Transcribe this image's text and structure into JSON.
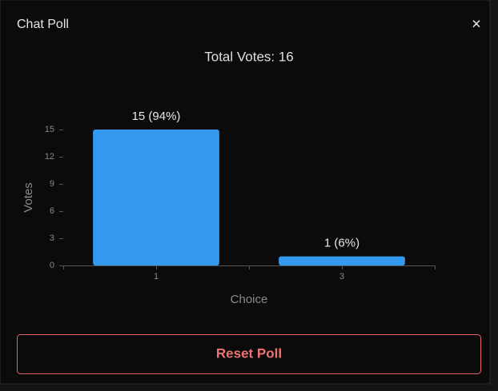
{
  "dialog": {
    "title": "Chat Poll",
    "close": "×"
  },
  "chart_data": {
    "type": "bar",
    "title": "Total Votes: 16",
    "categories": [
      "1",
      "3"
    ],
    "values": [
      15,
      1
    ],
    "value_labels": [
      "15 (94%)",
      "1 (6%)"
    ],
    "color": "#3399ee",
    "xlabel": "Choice",
    "ylabel": "Votes",
    "ylim": [
      0,
      15
    ],
    "yticks": [
      0,
      3,
      6,
      9,
      12,
      15
    ],
    "grid": false
  },
  "button": {
    "label": "Reset Poll"
  }
}
